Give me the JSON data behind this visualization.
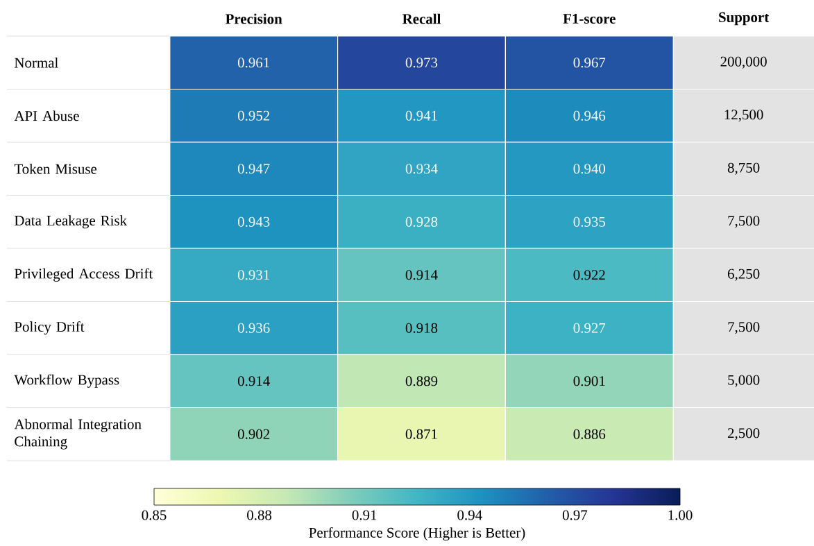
{
  "chart_data": {
    "type": "heatmap",
    "categories": [
      "Precision",
      "Recall",
      "F1-score"
    ],
    "y_categories": [
      "Normal",
      "API Abuse",
      "Token Misuse",
      "Data Leakage Risk",
      "Privileged Access Drift",
      "Policy Drift",
      "Workflow Bypass",
      "Abnormal Integration Chaining"
    ],
    "y2label": "Support",
    "y2_categories": [
      "200,000",
      "12,500",
      "8,750",
      "7,500",
      "6,250",
      "7,500",
      "5,000",
      "2,500"
    ],
    "cells": [
      [
        0.961,
        0.973,
        0.967
      ],
      [
        0.952,
        0.941,
        0.946
      ],
      [
        0.947,
        0.934,
        0.94
      ],
      [
        0.943,
        0.928,
        0.935
      ],
      [
        0.931,
        0.914,
        0.922
      ],
      [
        0.936,
        0.918,
        0.927
      ],
      [
        0.914,
        0.889,
        0.901
      ],
      [
        0.902,
        0.871,
        0.886
      ]
    ],
    "cell_labels": [
      [
        "0.961",
        "0.973",
        "0.967"
      ],
      [
        "0.952",
        "0.941",
        "0.946"
      ],
      [
        "0.947",
        "0.934",
        "0.940"
      ],
      [
        "0.943",
        "0.928",
        "0.935"
      ],
      [
        "0.931",
        "0.914",
        "0.922"
      ],
      [
        "0.936",
        "0.918",
        "0.927"
      ],
      [
        "0.914",
        "0.889",
        "0.901"
      ],
      [
        "0.902",
        "0.871",
        "0.886"
      ]
    ],
    "clim": [
      0.85,
      1.0
    ],
    "cticks": [
      0.85,
      0.88,
      0.91,
      0.94,
      0.97,
      {
        "value": 1.0,
        "label": "1.00"
      }
    ],
    "clabel": "Performance Score (Higher is Better)"
  }
}
